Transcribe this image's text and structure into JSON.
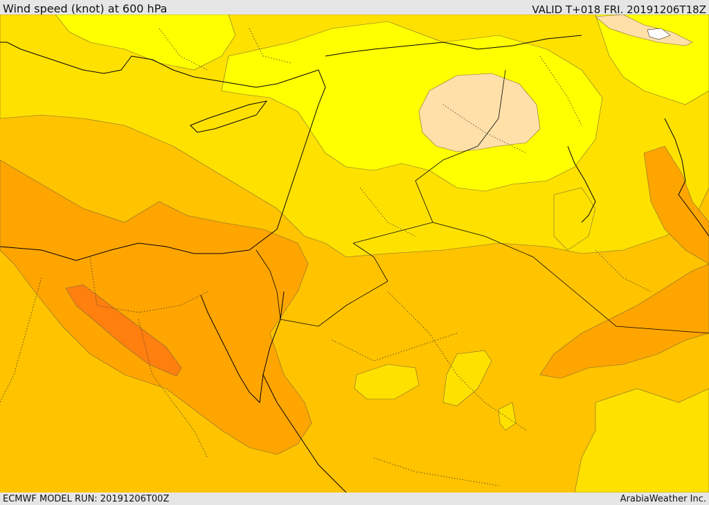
{
  "header": {
    "title": "Wind speed (knot) at 600 hPa",
    "valid": "VALID T+018 FRI. 20191206T18Z"
  },
  "footer": {
    "model_run": "ECMWF MODEL RUN: 20191206T00Z",
    "credit": "ArabiaWeather Inc."
  },
  "colors": {
    "very_light": "#ffe0a8",
    "bright_yellow": "#ffff00",
    "yellow": "#ffe100",
    "light_orange": "#ffc300",
    "orange": "#ffa500",
    "dark_orange": "#ff7f0f",
    "coast": "#000000",
    "contour": "#7a6a3a"
  }
}
